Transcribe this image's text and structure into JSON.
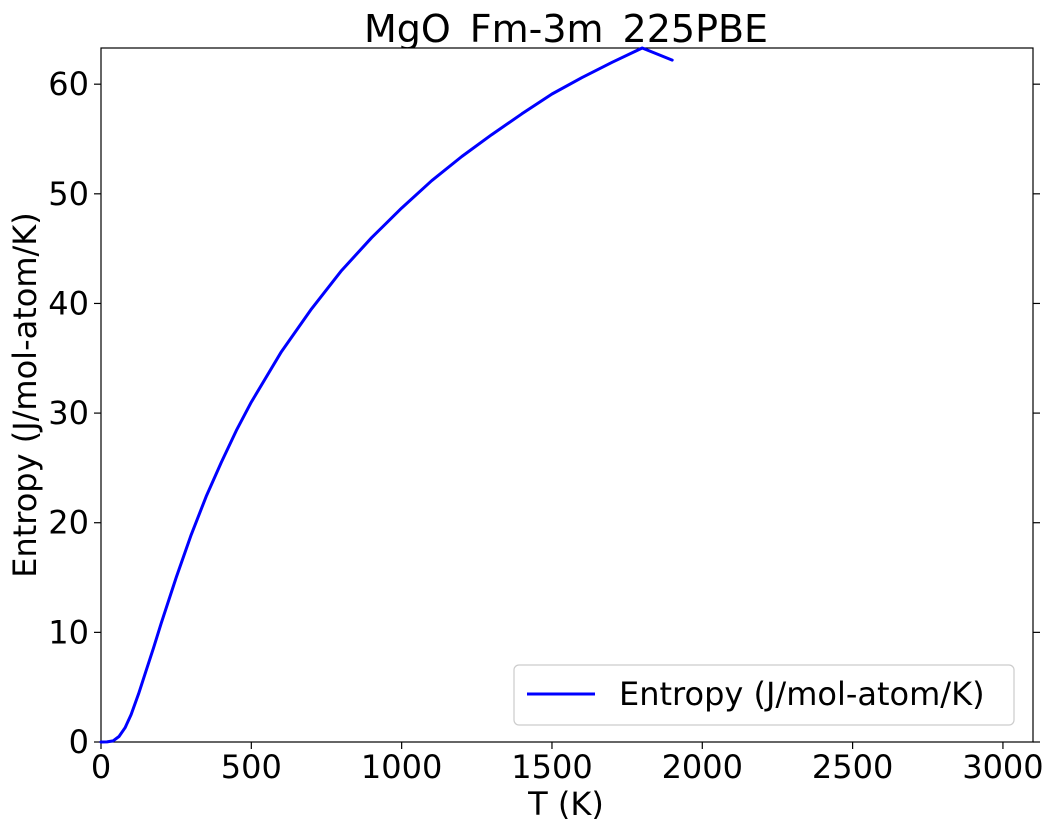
{
  "chart_data": {
    "type": "line",
    "title": "MgO_Fm-3m_225PBE",
    "xlabel": "T (K)",
    "ylabel": "Entropy (J/mol-atom/K)",
    "xlim": [
      0,
      3100
    ],
    "ylim": [
      0,
      63.3
    ],
    "xticks": [
      0,
      500,
      1000,
      1500,
      2000,
      2500,
      3000
    ],
    "yticks": [
      0,
      10,
      20,
      30,
      40,
      50,
      60
    ],
    "xtick_labels": [
      "0",
      "500",
      "1000",
      "1500",
      "2000",
      "2500",
      "3000"
    ],
    "ytick_labels": [
      "0",
      "10",
      "20",
      "30",
      "40",
      "50",
      "60"
    ],
    "grid": false,
    "legend_position": "lower-right",
    "colors": {
      "series": "#0000ff",
      "axes": "#000000",
      "background": "#ffffff"
    },
    "series": [
      {
        "name": "Entropy (J/mol-atom/K)",
        "x": [
          0,
          20,
          40,
          60,
          80,
          100,
          125,
          150,
          175,
          200,
          250,
          300,
          350,
          400,
          450,
          500,
          600,
          700,
          800,
          900,
          1000,
          1100,
          1200,
          1300,
          1400,
          1500,
          1600,
          1700,
          1800,
          1900
        ],
        "y": [
          0,
          0.01,
          0.1,
          0.5,
          1.3,
          2.5,
          4.4,
          6.5,
          8.6,
          10.8,
          15.0,
          18.9,
          22.4,
          25.5,
          28.4,
          31.0,
          35.6,
          39.5,
          43.0,
          46.0,
          48.7,
          51.2,
          53.4,
          55.4,
          57.3,
          59.1,
          60.6,
          62.0,
          63.3,
          62.2
        ]
      }
    ]
  }
}
